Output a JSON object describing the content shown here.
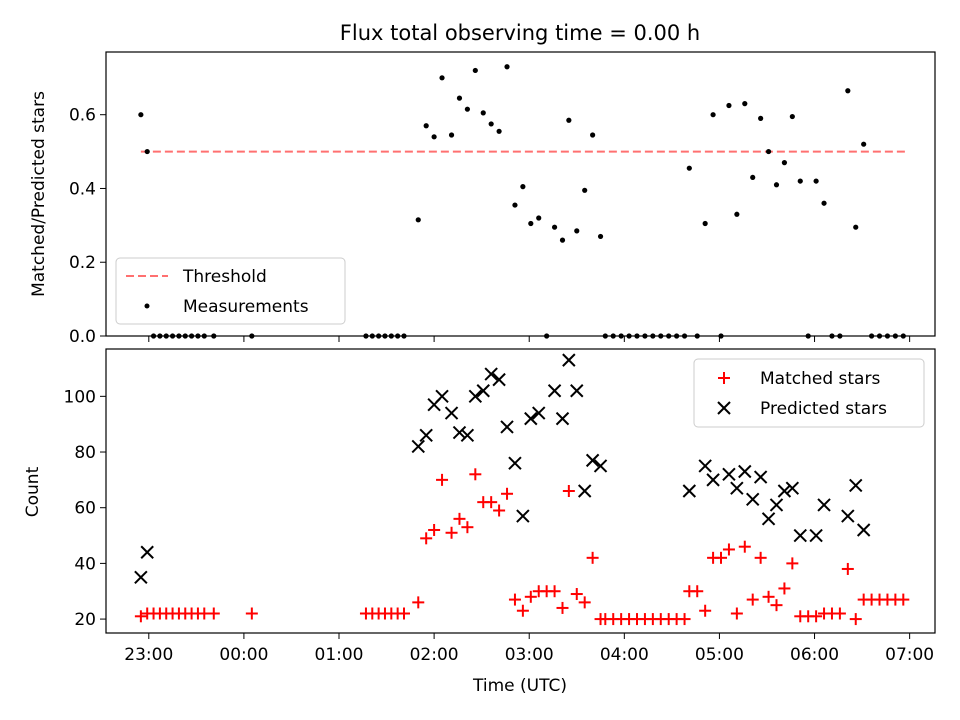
{
  "figure": {
    "title": "Flux total observing time = 0.00 h",
    "xlabel": "Time (UTC)"
  },
  "chart_data": [
    {
      "type": "scatter",
      "title": "Flux total observing time = 0.00 h",
      "xlabel": "",
      "ylabel": "Matched/Predicted stars",
      "xlim": [
        "22:33",
        "07:16"
      ],
      "ylim": [
        0.0,
        0.77
      ],
      "xticks": [],
      "yticks": [
        "0.0",
        "0.2",
        "0.4",
        "0.6"
      ],
      "ytick_values": [
        0.0,
        0.2,
        0.4,
        0.6
      ],
      "grid": false,
      "legend": {
        "position": "lower-left",
        "entries": [
          "Threshold",
          "Measurements"
        ]
      },
      "threshold": {
        "name": "Threshold",
        "value": 0.5,
        "x_range": [
          "22:55",
          "06:59"
        ],
        "color": "#ff7070",
        "style": "dashed"
      },
      "series": [
        {
          "name": "Measurements",
          "marker": "dot",
          "color": "#000000",
          "points": [
            [
              "22:55",
              0.6
            ],
            [
              "22:59",
              0.5
            ],
            [
              "23:03",
              0.0
            ],
            [
              "23:07",
              0.0
            ],
            [
              "23:11",
              0.0
            ],
            [
              "23:15",
              0.0
            ],
            [
              "23:19",
              0.0
            ],
            [
              "23:23",
              0.0
            ],
            [
              "23:27",
              0.0
            ],
            [
              "23:31",
              0.0
            ],
            [
              "23:35",
              0.0
            ],
            [
              "23:41",
              0.0
            ],
            [
              "00:05",
              0.0
            ],
            [
              "01:17",
              0.0
            ],
            [
              "01:21",
              0.0
            ],
            [
              "01:25",
              0.0
            ],
            [
              "01:29",
              0.0
            ],
            [
              "01:33",
              0.0
            ],
            [
              "01:37",
              0.0
            ],
            [
              "01:41",
              0.0
            ],
            [
              "01:50",
              0.315
            ],
            [
              "01:55",
              0.57
            ],
            [
              "02:00",
              0.54
            ],
            [
              "02:05",
              0.7
            ],
            [
              "02:11",
              0.545
            ],
            [
              "02:16",
              0.645
            ],
            [
              "02:21",
              0.615
            ],
            [
              "02:26",
              0.72
            ],
            [
              "02:31",
              0.605
            ],
            [
              "02:36",
              0.575
            ],
            [
              "02:41",
              0.555
            ],
            [
              "02:46",
              0.73
            ],
            [
              "02:51",
              0.355
            ],
            [
              "02:56",
              0.405
            ],
            [
              "03:01",
              0.305
            ],
            [
              "03:06",
              0.32
            ],
            [
              "03:11",
              0.0
            ],
            [
              "03:16",
              0.295
            ],
            [
              "03:21",
              0.26
            ],
            [
              "03:25",
              0.585
            ],
            [
              "03:30",
              0.285
            ],
            [
              "03:35",
              0.395
            ],
            [
              "03:40",
              0.545
            ],
            [
              "03:45",
              0.27
            ],
            [
              "03:48",
              0.0
            ],
            [
              "03:53",
              0.0
            ],
            [
              "03:58",
              0.0
            ],
            [
              "04:03",
              0.0
            ],
            [
              "04:08",
              0.0
            ],
            [
              "04:13",
              0.0
            ],
            [
              "04:18",
              0.0
            ],
            [
              "04:23",
              0.0
            ],
            [
              "04:28",
              0.0
            ],
            [
              "04:33",
              0.0
            ],
            [
              "04:38",
              0.0
            ],
            [
              "04:41",
              0.455
            ],
            [
              "04:46",
              0.0
            ],
            [
              "04:51",
              0.305
            ],
            [
              "04:56",
              0.6
            ],
            [
              "05:01",
              0.0
            ],
            [
              "05:06",
              0.625
            ],
            [
              "05:11",
              0.33
            ],
            [
              "05:16",
              0.63
            ],
            [
              "05:21",
              0.43
            ],
            [
              "05:26",
              0.59
            ],
            [
              "05:31",
              0.5
            ],
            [
              "05:36",
              0.41
            ],
            [
              "05:41",
              0.47
            ],
            [
              "05:46",
              0.595
            ],
            [
              "05:51",
              0.42
            ],
            [
              "05:56",
              0.0
            ],
            [
              "06:01",
              0.42
            ],
            [
              "06:06",
              0.36
            ],
            [
              "06:11",
              0.0
            ],
            [
              "06:16",
              0.0
            ],
            [
              "06:21",
              0.665
            ],
            [
              "06:26",
              0.295
            ],
            [
              "06:31",
              0.52
            ],
            [
              "06:36",
              0.0
            ],
            [
              "06:41",
              0.0
            ],
            [
              "06:46",
              0.0
            ],
            [
              "06:51",
              0.0
            ],
            [
              "06:56",
              0.0
            ]
          ]
        }
      ]
    },
    {
      "type": "scatter",
      "title": "",
      "xlabel": "Time (UTC)",
      "ylabel": "Count",
      "xlim": [
        "22:33",
        "07:16"
      ],
      "ylim": [
        15,
        117
      ],
      "xticks": [
        "23:00",
        "00:00",
        "01:00",
        "02:00",
        "03:00",
        "04:00",
        "05:00",
        "06:00",
        "07:00"
      ],
      "yticks": [
        "20",
        "40",
        "60",
        "80",
        "100"
      ],
      "ytick_values": [
        20,
        40,
        60,
        80,
        100
      ],
      "grid": false,
      "legend": {
        "position": "top-right",
        "entries": [
          "Matched stars",
          "Predicted stars"
        ]
      },
      "series": [
        {
          "name": "Matched stars",
          "marker": "plus",
          "color": "#ff0000",
          "points": [
            [
              "22:55",
              21
            ],
            [
              "22:59",
              22
            ],
            [
              "23:03",
              22
            ],
            [
              "23:07",
              22
            ],
            [
              "23:11",
              22
            ],
            [
              "23:15",
              22
            ],
            [
              "23:19",
              22
            ],
            [
              "23:23",
              22
            ],
            [
              "23:27",
              22
            ],
            [
              "23:31",
              22
            ],
            [
              "23:35",
              22
            ],
            [
              "23:41",
              22
            ],
            [
              "00:05",
              22
            ],
            [
              "01:17",
              22
            ],
            [
              "01:21",
              22
            ],
            [
              "01:25",
              22
            ],
            [
              "01:29",
              22
            ],
            [
              "01:33",
              22
            ],
            [
              "01:37",
              22
            ],
            [
              "01:41",
              22
            ],
            [
              "01:50",
              26
            ],
            [
              "01:55",
              49
            ],
            [
              "02:00",
              52
            ],
            [
              "02:05",
              70
            ],
            [
              "02:11",
              51
            ],
            [
              "02:16",
              56
            ],
            [
              "02:21",
              53
            ],
            [
              "02:26",
              72
            ],
            [
              "02:31",
              62
            ],
            [
              "02:36",
              62
            ],
            [
              "02:41",
              59
            ],
            [
              "02:46",
              65
            ],
            [
              "02:51",
              27
            ],
            [
              "02:56",
              23
            ],
            [
              "03:01",
              28
            ],
            [
              "03:06",
              30
            ],
            [
              "03:11",
              30
            ],
            [
              "03:16",
              30
            ],
            [
              "03:21",
              24
            ],
            [
              "03:25",
              66
            ],
            [
              "03:30",
              29
            ],
            [
              "03:35",
              26
            ],
            [
              "03:40",
              42
            ],
            [
              "03:45",
              20
            ],
            [
              "03:48",
              20
            ],
            [
              "03:53",
              20
            ],
            [
              "03:58",
              20
            ],
            [
              "04:03",
              20
            ],
            [
              "04:08",
              20
            ],
            [
              "04:13",
              20
            ],
            [
              "04:18",
              20
            ],
            [
              "04:23",
              20
            ],
            [
              "04:28",
              20
            ],
            [
              "04:33",
              20
            ],
            [
              "04:38",
              20
            ],
            [
              "04:41",
              30
            ],
            [
              "04:46",
              30
            ],
            [
              "04:51",
              23
            ],
            [
              "04:56",
              42
            ],
            [
              "05:01",
              42
            ],
            [
              "05:06",
              45
            ],
            [
              "05:11",
              22
            ],
            [
              "05:16",
              46
            ],
            [
              "05:21",
              27
            ],
            [
              "05:26",
              42
            ],
            [
              "05:31",
              28
            ],
            [
              "05:36",
              25
            ],
            [
              "05:41",
              31
            ],
            [
              "05:46",
              40
            ],
            [
              "05:51",
              21
            ],
            [
              "05:56",
              21
            ],
            [
              "06:01",
              21
            ],
            [
              "06:06",
              22
            ],
            [
              "06:11",
              22
            ],
            [
              "06:16",
              22
            ],
            [
              "06:21",
              38
            ],
            [
              "06:26",
              20
            ],
            [
              "06:31",
              27
            ],
            [
              "06:36",
              27
            ],
            [
              "06:41",
              27
            ],
            [
              "06:46",
              27
            ],
            [
              "06:51",
              27
            ],
            [
              "06:56",
              27
            ]
          ]
        },
        {
          "name": "Predicted stars",
          "marker": "x",
          "color": "#000000",
          "points": [
            [
              "22:55",
              35
            ],
            [
              "22:59",
              44
            ],
            [
              "01:50",
              82
            ],
            [
              "01:55",
              86
            ],
            [
              "02:00",
              97
            ],
            [
              "02:05",
              100
            ],
            [
              "02:11",
              94
            ],
            [
              "02:16",
              87
            ],
            [
              "02:21",
              86
            ],
            [
              "02:26",
              100
            ],
            [
              "02:31",
              102
            ],
            [
              "02:36",
              108
            ],
            [
              "02:41",
              106
            ],
            [
              "02:46",
              89
            ],
            [
              "02:51",
              76
            ],
            [
              "02:56",
              57
            ],
            [
              "03:01",
              92
            ],
            [
              "03:06",
              94
            ],
            [
              "03:16",
              102
            ],
            [
              "03:21",
              92
            ],
            [
              "03:25",
              113
            ],
            [
              "03:30",
              102
            ],
            [
              "03:35",
              66
            ],
            [
              "03:40",
              77
            ],
            [
              "03:45",
              75
            ],
            [
              "04:41",
              66
            ],
            [
              "04:51",
              75
            ],
            [
              "04:56",
              70
            ],
            [
              "05:06",
              72
            ],
            [
              "05:11",
              67
            ],
            [
              "05:16",
              73
            ],
            [
              "05:21",
              63
            ],
            [
              "05:26",
              71
            ],
            [
              "05:31",
              56
            ],
            [
              "05:36",
              61
            ],
            [
              "05:41",
              66
            ],
            [
              "05:46",
              67
            ],
            [
              "05:51",
              50
            ],
            [
              "06:01",
              50
            ],
            [
              "06:06",
              61
            ],
            [
              "06:21",
              57
            ],
            [
              "06:26",
              68
            ],
            [
              "06:31",
              52
            ]
          ]
        }
      ]
    }
  ]
}
